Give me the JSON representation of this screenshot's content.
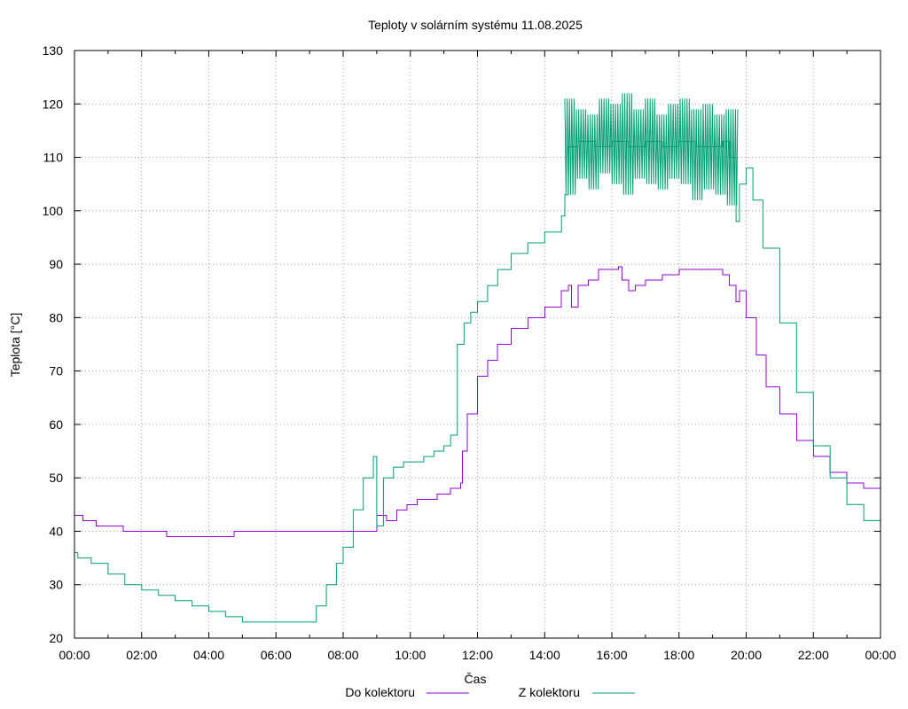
{
  "chart_data": {
    "type": "line",
    "title": "Teploty v solárním systému 11.08.2025",
    "xlabel": "Čas",
    "ylabel": "Teplota [°C]",
    "ylim": [
      20,
      130
    ],
    "xlim": [
      0,
      24
    ],
    "yticks": [
      20,
      30,
      40,
      50,
      60,
      70,
      80,
      90,
      100,
      110,
      120,
      130
    ],
    "xticks": [
      0,
      2,
      4,
      6,
      8,
      10,
      12,
      14,
      16,
      18,
      20,
      22,
      24
    ],
    "xtick_labels": [
      "00:00",
      "02:00",
      "04:00",
      "06:00",
      "08:00",
      "10:00",
      "12:00",
      "14:00",
      "16:00",
      "18:00",
      "20:00",
      "22:00",
      "00:00"
    ],
    "grid": true,
    "legend_position": "bottom",
    "series": [
      {
        "name": "Do kolektoru",
        "color": "#9400d3",
        "x": [
          0,
          0.2,
          0.25,
          0.6,
          0.65,
          1.4,
          1.45,
          2.7,
          2.75,
          4.7,
          4.75,
          8.9,
          9.0,
          9.3,
          9.6,
          9.9,
          10.2,
          10.5,
          10.8,
          11.2,
          11.5,
          11.55,
          11.7,
          12.0,
          12.3,
          12.6,
          13.0,
          13.5,
          14.0,
          14.5,
          14.7,
          14.8,
          15.0,
          15.3,
          15.6,
          16.0,
          16.2,
          16.3,
          16.5,
          16.7,
          17.0,
          17.5,
          18.0,
          18.5,
          19.0,
          19.3,
          19.5,
          19.7,
          19.8,
          20.0,
          20.3,
          20.6,
          21.0,
          21.5,
          22.0,
          22.5,
          23.0,
          23.5,
          24.0
        ],
        "y": [
          43,
          43,
          42,
          42,
          41,
          41,
          40,
          40,
          39,
          39,
          40,
          40,
          43,
          42,
          44,
          45,
          46,
          46,
          47,
          48,
          49,
          55,
          62,
          69,
          72,
          75,
          78,
          80,
          82,
          85,
          86,
          82,
          86,
          87,
          89,
          89,
          89.5,
          87,
          85,
          86,
          87,
          88,
          89,
          89,
          89,
          88,
          86,
          83,
          85,
          80,
          73,
          67,
          62,
          57,
          54,
          51,
          49,
          48,
          47
        ]
      },
      {
        "name": "Z kolektoru",
        "color": "#009e73",
        "x": [
          0,
          0.1,
          0.5,
          1.0,
          1.5,
          2.0,
          2.5,
          3.0,
          3.5,
          4.0,
          4.5,
          5.0,
          5.5,
          6.0,
          6.5,
          6.9,
          7.2,
          7.5,
          7.8,
          8.0,
          8.3,
          8.6,
          8.9,
          9.0,
          9.2,
          9.5,
          9.8,
          10.1,
          10.4,
          10.7,
          11.0,
          11.2,
          11.4,
          11.6,
          11.8,
          12.0,
          12.3,
          12.6,
          13.0,
          13.5,
          14.0,
          14.5,
          14.6,
          14.7,
          15.0,
          15.5,
          16.0,
          16.5,
          17.0,
          17.5,
          18.0,
          18.5,
          19.0,
          19.3,
          19.5,
          19.7,
          19.8,
          20.0,
          20.2,
          20.5,
          21.0,
          21.5,
          22.0,
          22.5,
          23.0,
          23.5,
          24.0
        ],
        "y": [
          36,
          35,
          34,
          32,
          30,
          29,
          28,
          27,
          26,
          25,
          24,
          23,
          23,
          23,
          23,
          23,
          26,
          30,
          34,
          37,
          44,
          50,
          54,
          41,
          50,
          52,
          53,
          53,
          54,
          55,
          56,
          58,
          75,
          79,
          81,
          83,
          86,
          89,
          92,
          94,
          96,
          99,
          103,
          112,
          113,
          112,
          113,
          112,
          113,
          112,
          113,
          112,
          112,
          113,
          110,
          98,
          105,
          108,
          102,
          93,
          79,
          66,
          56,
          50,
          45,
          42,
          39
        ]
      }
    ],
    "z_band": {
      "x_start": 14.6,
      "x_end": 19.75,
      "low": [
        103,
        106,
        104,
        107,
        105,
        103,
        106,
        105,
        104,
        106,
        105,
        102,
        104,
        103,
        101
      ],
      "high": [
        121,
        119,
        118,
        121,
        120,
        122,
        119,
        121,
        118,
        120,
        121,
        119,
        120,
        118,
        119
      ]
    }
  }
}
